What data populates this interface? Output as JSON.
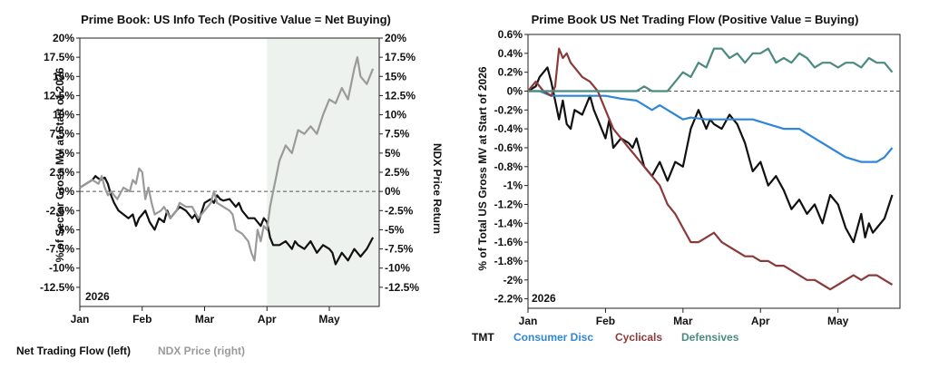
{
  "chart_data": [
    {
      "type": "line",
      "title": "Prime Book: US Info Tech (Positive Value = Net Buying)",
      "ylabel": "% of Sector Gross MV at Start of 2026",
      "y2label": "NDX Price Return",
      "year_label": "2026",
      "months": [
        "Jan",
        "Feb",
        "Mar",
        "Apr",
        "May"
      ],
      "ylim": [
        -15,
        20
      ],
      "y_ticks": [
        "20%",
        "17.5%",
        "15%",
        "12.5%",
        "10%",
        "7.5%",
        "5%",
        "2.5%",
        "0%",
        "-2.5%",
        "-5%",
        "-7.5%",
        "-10%",
        "-12.5%"
      ],
      "y2_ticks": [
        "20%",
        "17.5%",
        "15%",
        "12.5%",
        "10%",
        "7.5%",
        "5%",
        "2.5%",
        "0%",
        "-2.5%",
        "-5%",
        "-7.5%",
        "-10%",
        "-12.5%"
      ],
      "shaded_from_month_index": 3,
      "colors": {
        "net": "#111111",
        "ndx": "#9a9a9a",
        "shade": "#eef2ee"
      },
      "series": [
        {
          "name": "Net Trading Flow (left)",
          "color": "#111111",
          "x": [
            0,
            0.1,
            0.2,
            0.25,
            0.33,
            0.4,
            0.45,
            0.5,
            0.55,
            0.62,
            0.7,
            0.78,
            0.85,
            0.9,
            0.95,
            1.0,
            1.05,
            1.12,
            1.2,
            1.27,
            1.35,
            1.4,
            1.45,
            1.5,
            1.6,
            1.7,
            1.8,
            1.85,
            1.9,
            2.0,
            2.1,
            2.15,
            2.2,
            2.25,
            2.3,
            2.4,
            2.5,
            2.55,
            2.6,
            2.7,
            2.8,
            2.9,
            2.95,
            3.0,
            3.05,
            3.1,
            3.2,
            3.3,
            3.4,
            3.45,
            3.5,
            3.6,
            3.7,
            3.8,
            3.9,
            4.0,
            4.05,
            4.1,
            4.2,
            4.3,
            4.4,
            4.5,
            4.6,
            4.7
          ],
          "values": [
            0.5,
            1.0,
            1.5,
            2.0,
            1.5,
            1.8,
            1.0,
            -0.5,
            -1.5,
            -2.5,
            -3.0,
            -3.5,
            -3.0,
            -4.5,
            -3.5,
            -3.0,
            -2.5,
            -4.0,
            -5.0,
            -3.5,
            -4.0,
            -2.5,
            -3.5,
            -3.0,
            -2.0,
            -2.5,
            -3.5,
            -3.0,
            -4.0,
            -1.5,
            -1.0,
            -1.5,
            -0.5,
            -1.0,
            -1.2,
            -1.0,
            -2.0,
            -1.5,
            -2.5,
            -3.5,
            -3.5,
            -4.5,
            -3.5,
            -4.0,
            -6.0,
            -7.0,
            -7.0,
            -6.5,
            -7.5,
            -6.5,
            -7.0,
            -7.5,
            -6.5,
            -8.0,
            -7.0,
            -7.5,
            -8.0,
            -9.5,
            -8.0,
            -9.0,
            -7.5,
            -8.5,
            -7.5,
            -6.0
          ]
        },
        {
          "name": "NDX Price (right)",
          "color": "#9a9a9a",
          "x": [
            0,
            0.1,
            0.2,
            0.3,
            0.35,
            0.4,
            0.45,
            0.5,
            0.55,
            0.6,
            0.7,
            0.8,
            0.85,
            0.9,
            0.95,
            1.0,
            1.05,
            1.1,
            1.15,
            1.2,
            1.3,
            1.35,
            1.45,
            1.55,
            1.6,
            1.7,
            1.8,
            1.9,
            2.0,
            2.1,
            2.15,
            2.2,
            2.3,
            2.4,
            2.45,
            2.5,
            2.6,
            2.7,
            2.75,
            2.8,
            2.85,
            2.9,
            2.95,
            3.0,
            3.05,
            3.1,
            3.15,
            3.2,
            3.3,
            3.4,
            3.5,
            3.6,
            3.7,
            3.8,
            3.9,
            4.0,
            4.1,
            4.2,
            4.3,
            4.4,
            4.45,
            4.5,
            4.6,
            4.7
          ],
          "values": [
            0.5,
            1.0,
            1.5,
            1.0,
            2.0,
            0.5,
            -0.5,
            0.0,
            -0.5,
            -1.0,
            0.5,
            0.0,
            1.5,
            1.0,
            3.0,
            2.5,
            -1.0,
            0.5,
            -1.5,
            -3.0,
            -2.5,
            -2.0,
            -3.5,
            -2.5,
            -1.5,
            -2.0,
            -2.0,
            -3.5,
            -2.5,
            -1.5,
            0.0,
            -1.5,
            -2.0,
            -2.5,
            -3.0,
            -5.0,
            -5.5,
            -6.5,
            -8.0,
            -9.0,
            -5.0,
            -6.5,
            -4.5,
            -5.0,
            -2.0,
            0.0,
            2.0,
            4.0,
            6.0,
            5.0,
            8.0,
            7.5,
            8.5,
            7.5,
            10.0,
            12.0,
            11.5,
            13.5,
            12.0,
            16.0,
            17.5,
            15.0,
            14.0,
            16.0
          ]
        }
      ],
      "legend_position": "bottom-left"
    },
    {
      "type": "line",
      "title": "Prime Book US Net Trading Flow (Positive Value = Buying)",
      "ylabel": "% of Total US Gross MV at Start of 2026",
      "year_label": "2026",
      "months": [
        "Jan",
        "Feb",
        "Mar",
        "Apr",
        "May"
      ],
      "ylim": [
        -2.3,
        0.6
      ],
      "y_ticks": [
        "0.6%",
        "0.4%",
        "0.2%",
        "0%",
        "-0.2%",
        "-0.4%",
        "-0.6%",
        "-0.8%",
        "-1%",
        "-1.2%",
        "-1.4%",
        "-1.6%",
        "-1.8%",
        "-2%",
        "-2.2%"
      ],
      "series": [
        {
          "name": "TMT",
          "color": "#111111",
          "x": [
            0,
            0.1,
            0.15,
            0.2,
            0.25,
            0.3,
            0.35,
            0.4,
            0.45,
            0.5,
            0.55,
            0.6,
            0.7,
            0.8,
            0.85,
            0.9,
            0.95,
            1.0,
            1.05,
            1.1,
            1.2,
            1.3,
            1.35,
            1.4,
            1.5,
            1.6,
            1.7,
            1.8,
            1.9,
            2.0,
            2.1,
            2.2,
            2.3,
            2.35,
            2.4,
            2.5,
            2.6,
            2.7,
            2.8,
            2.9,
            3.0,
            3.1,
            3.2,
            3.3,
            3.4,
            3.5,
            3.6,
            3.7,
            3.8,
            3.9,
            4.0,
            4.1,
            4.2,
            4.3,
            4.35,
            4.4,
            4.45,
            4.5,
            4.6,
            4.7
          ],
          "values": [
            0.0,
            0.05,
            0.15,
            0.2,
            0.25,
            0.1,
            -0.1,
            -0.3,
            -0.1,
            -0.35,
            -0.4,
            -0.2,
            -0.25,
            -0.05,
            -0.2,
            -0.3,
            -0.4,
            -0.5,
            -0.3,
            -0.6,
            -0.5,
            -0.55,
            -0.6,
            -0.5,
            -0.8,
            -0.9,
            -0.75,
            -0.95,
            -0.75,
            -0.8,
            -0.4,
            -0.2,
            -0.4,
            -0.3,
            -0.35,
            -0.4,
            -0.25,
            -0.35,
            -0.55,
            -0.85,
            -0.75,
            -1.0,
            -0.9,
            -1.05,
            -1.25,
            -1.15,
            -1.3,
            -1.2,
            -1.4,
            -1.1,
            -1.2,
            -1.45,
            -1.6,
            -1.3,
            -1.55,
            -1.4,
            -1.5,
            -1.45,
            -1.35,
            -1.1
          ]
        },
        {
          "name": "Consumer Disc",
          "color": "#2f86d6",
          "x": [
            0,
            0.15,
            0.3,
            0.45,
            0.6,
            0.75,
            0.9,
            1.0,
            1.2,
            1.4,
            1.5,
            1.6,
            1.7,
            1.8,
            1.9,
            2.0,
            2.1,
            2.3,
            2.5,
            2.7,
            2.9,
            3.1,
            3.3,
            3.5,
            3.7,
            3.9,
            4.1,
            4.3,
            4.5,
            4.6,
            4.7
          ],
          "values": [
            0.0,
            0.0,
            -0.05,
            -0.05,
            -0.05,
            -0.05,
            -0.05,
            -0.05,
            -0.08,
            -0.1,
            -0.15,
            -0.2,
            -0.15,
            -0.2,
            -0.25,
            -0.3,
            -0.28,
            -0.3,
            -0.3,
            -0.3,
            -0.3,
            -0.35,
            -0.4,
            -0.4,
            -0.5,
            -0.6,
            -0.7,
            -0.75,
            -0.75,
            -0.7,
            -0.6
          ]
        },
        {
          "name": "Cyclicals",
          "color": "#8b3a3a",
          "x": [
            0,
            0.1,
            0.2,
            0.3,
            0.35,
            0.4,
            0.45,
            0.5,
            0.55,
            0.6,
            0.7,
            0.8,
            0.9,
            1.0,
            1.1,
            1.2,
            1.3,
            1.4,
            1.5,
            1.6,
            1.7,
            1.8,
            1.9,
            2.0,
            2.1,
            2.2,
            2.3,
            2.4,
            2.5,
            2.6,
            2.7,
            2.8,
            2.9,
            3.0,
            3.1,
            3.2,
            3.3,
            3.4,
            3.5,
            3.6,
            3.7,
            3.8,
            3.9,
            4.0,
            4.1,
            4.2,
            4.3,
            4.4,
            4.5,
            4.6,
            4.7
          ],
          "values": [
            0.0,
            0.1,
            0.0,
            -0.05,
            0.05,
            0.45,
            0.35,
            0.4,
            0.3,
            0.25,
            0.15,
            0.1,
            0.0,
            -0.2,
            -0.4,
            -0.5,
            -0.6,
            -0.7,
            -0.8,
            -0.9,
            -1.0,
            -1.2,
            -1.3,
            -1.45,
            -1.6,
            -1.6,
            -1.55,
            -1.5,
            -1.6,
            -1.65,
            -1.7,
            -1.75,
            -1.75,
            -1.8,
            -1.8,
            -1.85,
            -1.85,
            -1.9,
            -1.95,
            -2.0,
            -2.0,
            -2.05,
            -2.1,
            -2.05,
            -2.0,
            -1.95,
            -2.0,
            -1.95,
            -1.95,
            -2.0,
            -2.05
          ]
        },
        {
          "name": "Defensives",
          "color": "#4b8b7f",
          "x": [
            0,
            0.2,
            0.4,
            0.6,
            0.8,
            1.0,
            1.2,
            1.4,
            1.5,
            1.6,
            1.8,
            1.9,
            2.0,
            2.1,
            2.2,
            2.3,
            2.4,
            2.5,
            2.6,
            2.7,
            2.8,
            2.9,
            3.0,
            3.1,
            3.2,
            3.3,
            3.4,
            3.5,
            3.6,
            3.7,
            3.8,
            3.9,
            4.0,
            4.1,
            4.2,
            4.3,
            4.4,
            4.5,
            4.6,
            4.7
          ],
          "values": [
            0.0,
            0.0,
            0.0,
            0.0,
            0.0,
            0.0,
            0.0,
            0.0,
            0.05,
            0.0,
            0.0,
            0.1,
            0.2,
            0.15,
            0.3,
            0.25,
            0.45,
            0.45,
            0.35,
            0.4,
            0.3,
            0.4,
            0.4,
            0.45,
            0.3,
            0.35,
            0.3,
            0.4,
            0.35,
            0.25,
            0.3,
            0.3,
            0.25,
            0.3,
            0.3,
            0.25,
            0.35,
            0.3,
            0.3,
            0.2
          ]
        }
      ],
      "legend_position": "bottom-left"
    }
  ]
}
